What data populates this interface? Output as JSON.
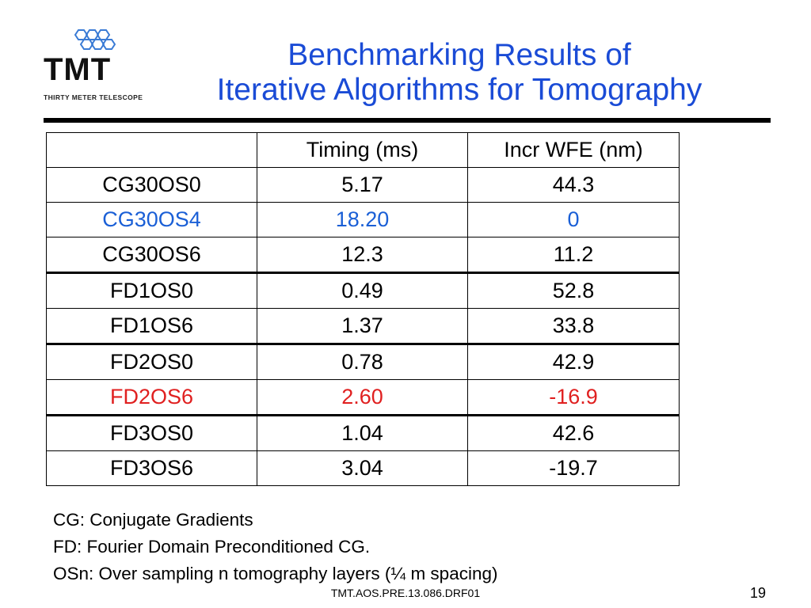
{
  "logo": {
    "wordmark": "TMT",
    "subtitle": "THIRTY METER TELESCOPE",
    "icon": "hexagon-cluster-icon",
    "color": "#3a7bd5"
  },
  "title": {
    "line1": "Benchmarking Results of",
    "line2": "Iterative Algorithms for Tomography",
    "color": "#1a4bd6"
  },
  "table": {
    "headers": [
      "",
      "Timing (ms)",
      "Incr WFE (nm)"
    ],
    "rows": [
      {
        "cells": [
          "CG30OS0",
          "5.17",
          "44.3"
        ],
        "color": "#000000"
      },
      {
        "cells": [
          "CG30OS4",
          "18.20",
          "0"
        ],
        "color": "#1a5fd6"
      },
      {
        "cells": [
          "CG30OS6",
          "12.3",
          "11.2"
        ],
        "color": "#000000"
      },
      {
        "cells": [
          "FD1OS0",
          "0.49",
          "52.8"
        ],
        "color": "#000000"
      },
      {
        "cells": [
          "FD1OS6",
          "1.37",
          "33.8"
        ],
        "color": "#000000"
      },
      {
        "cells": [
          "FD2OS0",
          "0.78",
          "42.9"
        ],
        "color": "#000000"
      },
      {
        "cells": [
          "FD2OS6",
          "2.60",
          "-16.9"
        ],
        "color": "#e02020"
      },
      {
        "cells": [
          "FD3OS0",
          "1.04",
          "42.6"
        ],
        "color": "#000000"
      },
      {
        "cells": [
          "FD3OS6",
          "3.04",
          "-19.7"
        ],
        "color": "#000000"
      }
    ]
  },
  "notes": [
    "CG: Conjugate Gradients",
    "FD: Fourier Domain Preconditioned CG.",
    "OSn: Over sampling n tomography layers (¼  m spacing)"
  ],
  "footer": "TMT.AOS.PRE.13.086.DRF01",
  "page_number": "19"
}
